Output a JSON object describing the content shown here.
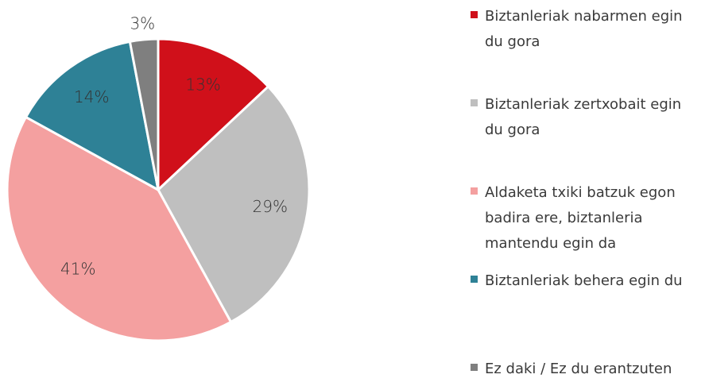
{
  "chart_data": {
    "type": "pie",
    "categories": [
      "Biztanleriak nabarmen egin du gora",
      "Biztanleriak zertxobait egin du gora",
      "Aldaketa txiki batzuk egon badira ere, biztanleria mantendu egin da",
      "Biztanleriak behera egin du",
      "Ez daki / Ez du erantzuten"
    ],
    "values": [
      13,
      29,
      41,
      14,
      3
    ],
    "value_labels": [
      "13%",
      "29%",
      "41%",
      "14%",
      "3%"
    ],
    "colors": [
      "#d0101a",
      "#bfbfbf",
      "#f4a0a0",
      "#2e8196",
      "#7f7f7f"
    ],
    "legend": "right"
  }
}
